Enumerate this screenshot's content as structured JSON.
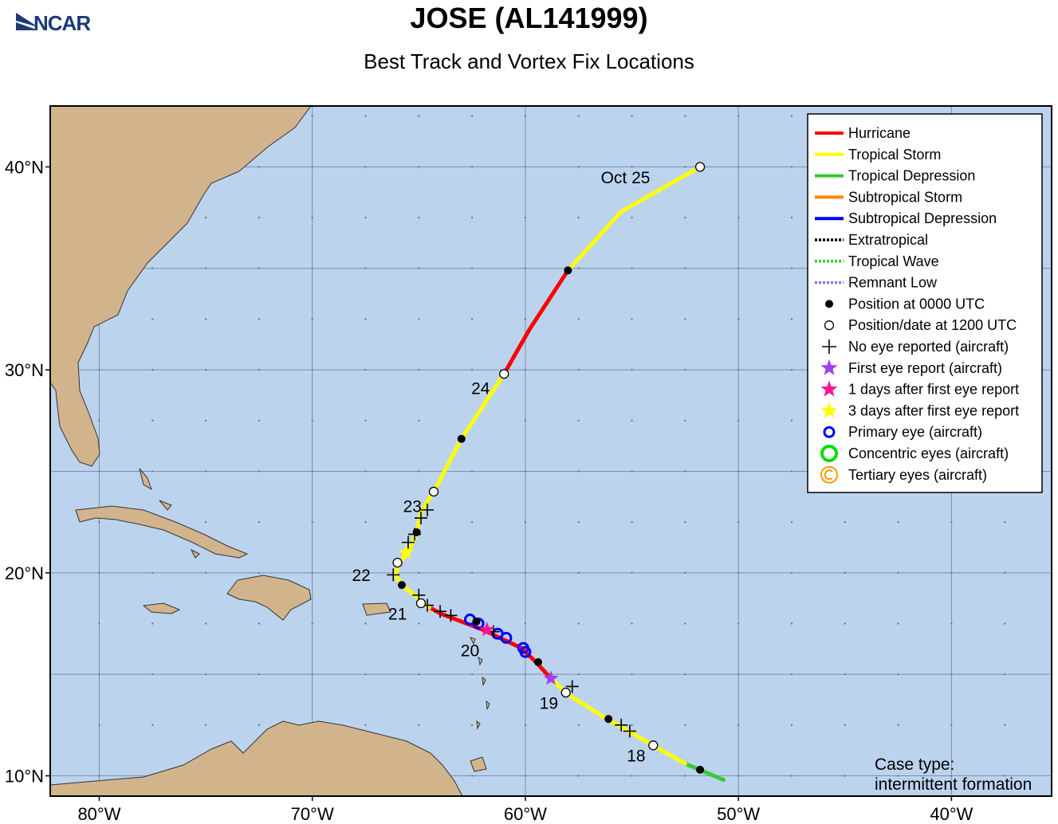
{
  "header": {
    "logo_text": "NCAR",
    "title": "JOSE (AL141999)",
    "subtitle": "Best Track and Vortex Fix Locations"
  },
  "axes": {
    "lon_range": [
      -82.3,
      -35.3
    ],
    "lat_range": [
      9.0,
      43.0
    ],
    "x_ticks": [
      {
        "value": -80,
        "label": "80°W"
      },
      {
        "value": -70,
        "label": "70°W"
      },
      {
        "value": -60,
        "label": "60°W"
      },
      {
        "value": -50,
        "label": "50°W"
      },
      {
        "value": -40,
        "label": "40°W"
      }
    ],
    "y_ticks": [
      {
        "value": 10,
        "label": "10°N"
      },
      {
        "value": 20,
        "label": "20°N"
      },
      {
        "value": 30,
        "label": "30°N"
      },
      {
        "value": 40,
        "label": "40°N"
      }
    ],
    "gridline_lons": [
      -80,
      -70,
      -60,
      -50,
      -40
    ],
    "gridline_lats": [
      10,
      15,
      20,
      25,
      30,
      35,
      40
    ]
  },
  "colors": {
    "ocean": "#bcd3ee",
    "land": "#d2b48c",
    "hurricane": "#ff0000",
    "tropical_storm": "#ffff00",
    "tropical_depression": "#33cc33",
    "subtropical_storm": "#ff8800",
    "subtropical_depression": "#0000ff",
    "extratropical": "#000000",
    "tropical_wave": "#33cc33",
    "remnant_low": "#9370db",
    "first_eye": "#a040f0",
    "one_day_eye": "#ff1493",
    "three_day_eye": "#ffff00",
    "primary_eye": "#0000ff",
    "concentric_eye": "#00dd00",
    "tertiary_eye": "#ff9900"
  },
  "legend": {
    "items": [
      {
        "label": "Hurricane",
        "symbol": "line",
        "color": "#ff0000"
      },
      {
        "label": "Tropical Storm",
        "symbol": "line",
        "color": "#ffff00"
      },
      {
        "label": "Tropical Depression",
        "symbol": "line",
        "color": "#33cc33"
      },
      {
        "label": "Subtropical Storm",
        "symbol": "line",
        "color": "#ff8800"
      },
      {
        "label": "Subtropical Depression",
        "symbol": "line",
        "color": "#0000ff"
      },
      {
        "label": "Extratropical",
        "symbol": "dotted",
        "color": "#000000"
      },
      {
        "label": "Tropical Wave",
        "symbol": "dotted",
        "color": "#33cc33"
      },
      {
        "label": "Remnant Low",
        "symbol": "dotted",
        "color": "#9370db"
      },
      {
        "label": "Position at 0000 UTC",
        "symbol": "filled-dot",
        "color": "#000000"
      },
      {
        "label": "Position/date at 1200 UTC",
        "symbol": "open-dot",
        "color": "#000000"
      },
      {
        "label": "No eye reported (aircraft)",
        "symbol": "plus",
        "color": "#000000"
      },
      {
        "label": "First eye report (aircraft)",
        "symbol": "star",
        "color": "#a040f0"
      },
      {
        "label": "1 days after first eye report",
        "symbol": "star",
        "color": "#ff1493"
      },
      {
        "label": "3 days after first eye report",
        "symbol": "star",
        "color": "#ffff00"
      },
      {
        "label": "Primary eye (aircraft)",
        "symbol": "ring",
        "color": "#0000ff"
      },
      {
        "label": "Concentric eyes (aircraft)",
        "symbol": "ring-thick",
        "color": "#00dd00"
      },
      {
        "label": "Tertiary eyes (aircraft)",
        "symbol": "ring-c",
        "color": "#ff9900"
      }
    ]
  },
  "case_type": {
    "line1": "Case type:",
    "line2": "intermittent formation"
  },
  "track": {
    "segments": [
      {
        "status": "tropical_depression",
        "points": [
          [
            -50.7,
            9.8
          ],
          [
            -52.5,
            10.6
          ]
        ]
      },
      {
        "status": "tropical_storm",
        "points": [
          [
            -52.5,
            10.6
          ],
          [
            -54.0,
            11.5
          ],
          [
            -56.0,
            12.7
          ],
          [
            -58.0,
            14.0
          ],
          [
            -58.8,
            14.8
          ]
        ]
      },
      {
        "status": "hurricane",
        "points": [
          [
            -58.8,
            14.8
          ],
          [
            -59.5,
            15.6
          ],
          [
            -60.2,
            16.3
          ],
          [
            -61.2,
            16.8
          ],
          [
            -62.0,
            17.2
          ],
          [
            -63.0,
            17.6
          ],
          [
            -64.0,
            18.0
          ],
          [
            -64.5,
            18.3
          ]
        ]
      },
      {
        "status": "tropical_storm",
        "points": [
          [
            -64.5,
            18.3
          ],
          [
            -64.8,
            18.5
          ],
          [
            -65.2,
            18.9
          ],
          [
            -65.8,
            19.4
          ],
          [
            -66.1,
            19.9
          ],
          [
            -65.9,
            20.5
          ],
          [
            -65.5,
            21.0
          ],
          [
            -65.1,
            22.0
          ],
          [
            -64.9,
            23.0
          ],
          [
            -64.3,
            24.0
          ],
          [
            -63.0,
            26.6
          ],
          [
            -61.0,
            29.8
          ]
        ]
      },
      {
        "status": "hurricane",
        "points": [
          [
            -61.0,
            29.8
          ],
          [
            -59.8,
            32.0
          ],
          [
            -58.0,
            34.9
          ]
        ]
      },
      {
        "status": "tropical_storm",
        "points": [
          [
            -58.0,
            34.9
          ],
          [
            -55.5,
            37.8
          ],
          [
            -51.8,
            40.0
          ]
        ]
      }
    ],
    "positions_0000": [
      [
        -51.8,
        10.3
      ],
      [
        -56.1,
        12.8
      ],
      [
        -59.4,
        15.6
      ],
      [
        -62.3,
        17.6
      ],
      [
        -65.8,
        19.4
      ],
      [
        -65.1,
        22.0
      ],
      [
        -63.0,
        26.6
      ],
      [
        -58.0,
        34.9
      ]
    ],
    "positions_1200": [
      [
        -54.0,
        11.5
      ],
      [
        -58.1,
        14.1
      ],
      [
        -64.9,
        18.5
      ],
      [
        -66.0,
        20.5
      ],
      [
        -64.3,
        24.0
      ],
      [
        -61.0,
        29.8
      ],
      [
        -51.8,
        40.0
      ]
    ],
    "no_eye_fixes": [
      [
        -55.5,
        12.5
      ],
      [
        -55.1,
        12.2
      ],
      [
        -57.8,
        14.4
      ],
      [
        -61.5,
        17.1
      ],
      [
        -63.5,
        17.9
      ],
      [
        -64.0,
        18.1
      ],
      [
        -64.6,
        18.4
      ],
      [
        -65.0,
        18.9
      ],
      [
        -66.2,
        19.9
      ],
      [
        -65.5,
        21.5
      ],
      [
        -65.2,
        21.9
      ],
      [
        -64.9,
        22.7
      ],
      [
        -64.6,
        23.1
      ]
    ],
    "first_eye": [
      [
        -58.8,
        14.8
      ]
    ],
    "one_day_eye": [
      [
        -61.8,
        17.2
      ]
    ],
    "three_day_eye": [
      [
        -65.6,
        21.0
      ]
    ],
    "primary_eyes": [
      [
        -62.2,
        17.5
      ],
      [
        -61.3,
        17.0
      ],
      [
        -60.9,
        16.8
      ],
      [
        -60.1,
        16.3
      ],
      [
        -60.0,
        16.1
      ],
      [
        -62.6,
        17.7
      ]
    ],
    "date_labels": [
      {
        "text": "18",
        "lon": -54.8,
        "lat": 10.7
      },
      {
        "text": "19",
        "lon": -58.9,
        "lat": 13.3
      },
      {
        "text": "20",
        "lon": -62.6,
        "lat": 15.9
      },
      {
        "text": "21",
        "lon": -66.0,
        "lat": 17.7
      },
      {
        "text": "22",
        "lon": -67.7,
        "lat": 19.6
      },
      {
        "text": "23",
        "lon": -65.3,
        "lat": 23.0
      },
      {
        "text": "24",
        "lon": -62.1,
        "lat": 28.8
      },
      {
        "text": "Oct 25",
        "lon": -55.3,
        "lat": 39.2
      }
    ]
  }
}
